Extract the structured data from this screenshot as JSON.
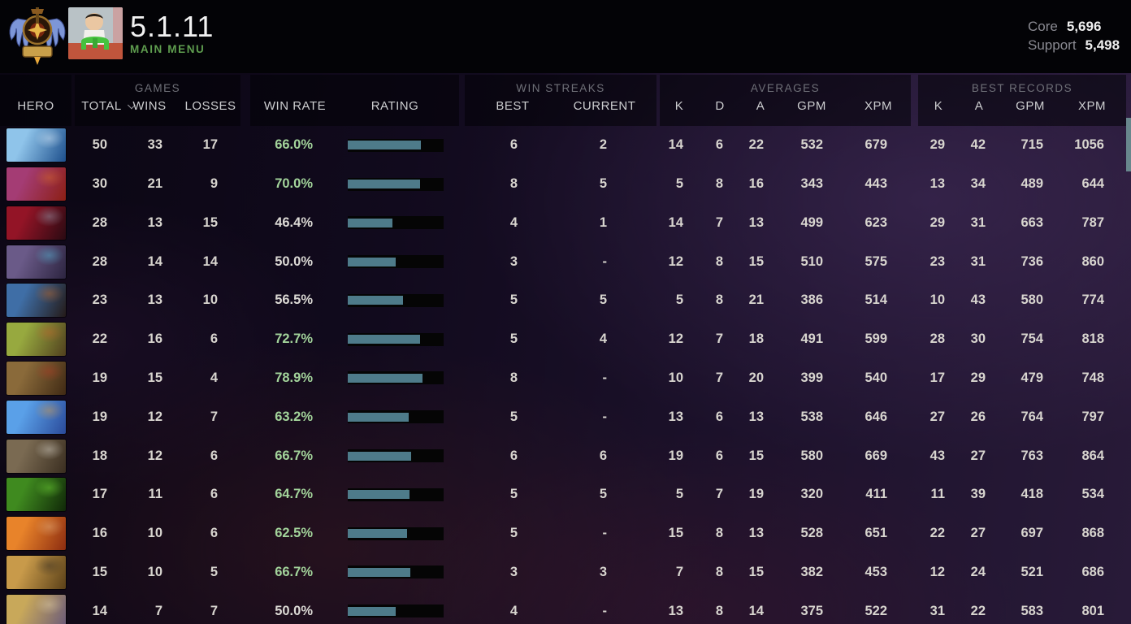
{
  "app": {
    "title": "5.1.11",
    "menu_label": "MAIN MENU",
    "role_stats": [
      {
        "label": "Core",
        "value": "5,696"
      },
      {
        "label": "Support",
        "value": "5,498"
      }
    ]
  },
  "colors": {
    "menu_green": "#5f9e4f",
    "win_rate_green": "#a3d49b",
    "rating_bar_fill": "#4e7b8a",
    "rating_bar_track": "#050505",
    "scrollbar_thumb": "#68878d"
  },
  "table": {
    "groups": {
      "games": "GAMES",
      "win_streaks": "WIN STREAKS",
      "averages": "AVERAGES",
      "best_records": "BEST RECORDS"
    },
    "columns": {
      "hero": "HERO",
      "total": "TOTAL",
      "wins": "WINS",
      "losses": "LOSSES",
      "win_rate": "WIN RATE",
      "rating": "RATING",
      "best": "BEST",
      "current": "CURRENT",
      "k": "K",
      "d": "D",
      "a": "A",
      "gpm": "GPM",
      "xpm": "XPM"
    },
    "sorted_column": "total",
    "rows": [
      {
        "hero": "zeus",
        "portrait_colors": [
          "#8fc4ea",
          "#1d4f8c",
          "#e8f4ff"
        ],
        "total": 50,
        "wins": 33,
        "losses": 17,
        "win_rate": "66.0%",
        "rating_fill": 0.76,
        "streak_best": 6,
        "streak_current": "2",
        "avg_k": 14,
        "avg_d": 6,
        "avg_a": 22,
        "avg_gpm": 532,
        "avg_xpm": 679,
        "best_k": 29,
        "best_a": 42,
        "best_gpm": 715,
        "best_xpm": 1056
      },
      {
        "hero": "lion",
        "portrait_colors": [
          "#a43c74",
          "#8c1f14",
          "#e0742a"
        ],
        "total": 30,
        "wins": 21,
        "losses": 9,
        "win_rate": "70.0%",
        "rating_fill": 0.755,
        "streak_best": 8,
        "streak_current": "5",
        "avg_k": 5,
        "avg_d": 8,
        "avg_a": 16,
        "avg_gpm": 343,
        "avg_xpm": 443,
        "best_k": 13,
        "best_a": 34,
        "best_gpm": 489,
        "best_xpm": 644
      },
      {
        "hero": "queen-of-pain",
        "portrait_colors": [
          "#931426",
          "#2a0a12",
          "#9fb4c8"
        ],
        "total": 28,
        "wins": 13,
        "losses": 15,
        "win_rate": "46.4%",
        "rating_fill": 0.47,
        "streak_best": 4,
        "streak_current": "1",
        "avg_k": 14,
        "avg_d": 7,
        "avg_a": 13,
        "avg_gpm": 499,
        "avg_xpm": 623,
        "best_k": 29,
        "best_a": 31,
        "best_gpm": 663,
        "best_xpm": 787
      },
      {
        "hero": "tinker",
        "portrait_colors": [
          "#6a5a88",
          "#2c2440",
          "#58c8e8"
        ],
        "total": 28,
        "wins": 14,
        "losses": 14,
        "win_rate": "50.0%",
        "rating_fill": 0.5,
        "streak_best": 3,
        "streak_current": "-",
        "avg_k": 12,
        "avg_d": 8,
        "avg_a": 15,
        "avg_gpm": 510,
        "avg_xpm": 575,
        "best_k": 23,
        "best_a": 31,
        "best_gpm": 736,
        "best_xpm": 860
      },
      {
        "hero": "jakiro",
        "portrait_colors": [
          "#3f6ea6",
          "#241a18",
          "#d06a1e"
        ],
        "total": 23,
        "wins": 13,
        "losses": 10,
        "win_rate": "56.5%",
        "rating_fill": 0.575,
        "streak_best": 5,
        "streak_current": "5",
        "avg_k": 5,
        "avg_d": 8,
        "avg_a": 21,
        "avg_gpm": 386,
        "avg_xpm": 514,
        "best_k": 10,
        "best_a": 43,
        "best_gpm": 580,
        "best_xpm": 774
      },
      {
        "hero": "windranger",
        "portrait_colors": [
          "#97a93f",
          "#51401e",
          "#c8622c"
        ],
        "total": 22,
        "wins": 16,
        "losses": 6,
        "win_rate": "72.7%",
        "rating_fill": 0.755,
        "streak_best": 5,
        "streak_current": "4",
        "avg_k": 12,
        "avg_d": 7,
        "avg_a": 18,
        "avg_gpm": 491,
        "avg_xpm": 599,
        "best_k": 28,
        "best_a": 30,
        "best_gpm": 754,
        "best_xpm": 818
      },
      {
        "hero": "earthshaker",
        "portrait_colors": [
          "#8a6a3a",
          "#402a14",
          "#b83a24"
        ],
        "total": 19,
        "wins": 15,
        "losses": 4,
        "win_rate": "78.9%",
        "rating_fill": 0.78,
        "streak_best": 8,
        "streak_current": "-",
        "avg_k": 10,
        "avg_d": 7,
        "avg_a": 20,
        "avg_gpm": 399,
        "avg_xpm": 540,
        "best_k": 17,
        "best_a": 29,
        "best_gpm": 479,
        "best_xpm": 748
      },
      {
        "hero": "puck",
        "portrait_colors": [
          "#5aa0e8",
          "#2a4a9a",
          "#e8a03a"
        ],
        "total": 19,
        "wins": 12,
        "losses": 7,
        "win_rate": "63.2%",
        "rating_fill": 0.635,
        "streak_best": 5,
        "streak_current": "-",
        "avg_k": 13,
        "avg_d": 6,
        "avg_a": 13,
        "avg_gpm": 538,
        "avg_xpm": 646,
        "best_k": 27,
        "best_a": 26,
        "best_gpm": 764,
        "best_xpm": 797
      },
      {
        "hero": "sniper",
        "portrait_colors": [
          "#7a6a52",
          "#3a2e20",
          "#e8e4da"
        ],
        "total": 18,
        "wins": 12,
        "losses": 6,
        "win_rate": "66.7%",
        "rating_fill": 0.66,
        "streak_best": 6,
        "streak_current": "6",
        "avg_k": 19,
        "avg_d": 6,
        "avg_a": 15,
        "avg_gpm": 580,
        "avg_xpm": 669,
        "best_k": 43,
        "best_a": 27,
        "best_gpm": 763,
        "best_xpm": 864
      },
      {
        "hero": "rubick",
        "portrait_colors": [
          "#3f8a1f",
          "#102808",
          "#7ae83a"
        ],
        "total": 17,
        "wins": 11,
        "losses": 6,
        "win_rate": "64.7%",
        "rating_fill": 0.645,
        "streak_best": 5,
        "streak_current": "5",
        "avg_k": 5,
        "avg_d": 7,
        "avg_a": 19,
        "avg_gpm": 320,
        "avg_xpm": 411,
        "best_k": 11,
        "best_a": 39,
        "best_gpm": 418,
        "best_xpm": 534
      },
      {
        "hero": "lina",
        "portrait_colors": [
          "#e8832a",
          "#8c2c10",
          "#e8b98a"
        ],
        "total": 16,
        "wins": 10,
        "losses": 6,
        "win_rate": "62.5%",
        "rating_fill": 0.615,
        "streak_best": 5,
        "streak_current": "-",
        "avg_k": 15,
        "avg_d": 8,
        "avg_a": 13,
        "avg_gpm": 528,
        "avg_xpm": 651,
        "best_k": 22,
        "best_a": 27,
        "best_gpm": 697,
        "best_xpm": 868
      },
      {
        "hero": "bounty-hunter",
        "portrait_colors": [
          "#c89a4a",
          "#5a4018",
          "#2a2420"
        ],
        "total": 15,
        "wins": 10,
        "losses": 5,
        "win_rate": "66.7%",
        "rating_fill": 0.655,
        "streak_best": 3,
        "streak_current": "3",
        "avg_k": 7,
        "avg_d": 8,
        "avg_a": 15,
        "avg_gpm": 382,
        "avg_xpm": 453,
        "best_k": 12,
        "best_a": 24,
        "best_gpm": 521,
        "best_xpm": 686
      },
      {
        "hero": "skywrath-mage",
        "portrait_colors": [
          "#c8a85a",
          "#6a5a7a",
          "#e8d8b0"
        ],
        "total": 14,
        "wins": 7,
        "losses": 7,
        "win_rate": "50.0%",
        "rating_fill": 0.5,
        "streak_best": 4,
        "streak_current": "-",
        "avg_k": 13,
        "avg_d": 8,
        "avg_a": 14,
        "avg_gpm": 375,
        "avg_xpm": 522,
        "best_k": 31,
        "best_a": 22,
        "best_gpm": 583,
        "best_xpm": 801
      }
    ]
  }
}
